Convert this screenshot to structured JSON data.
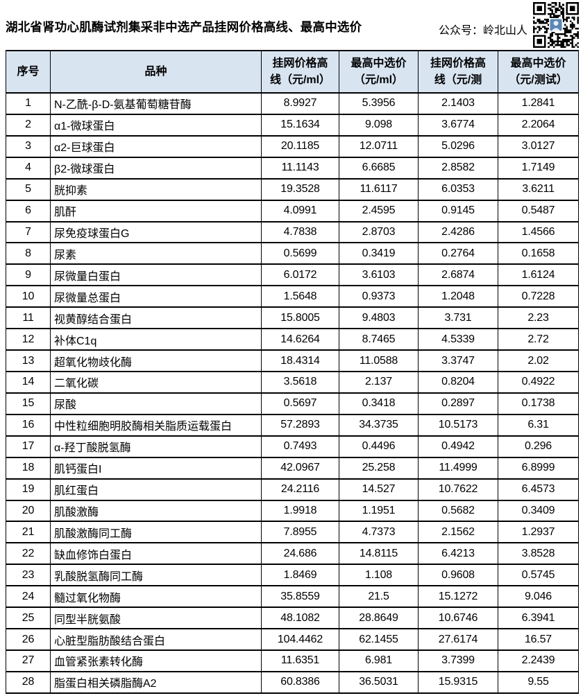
{
  "title": "湖北省肾功心肌酶试剂集采非中选产品挂网价格高线、最高中选价",
  "watermark": "公众号：岭北山人",
  "colors": {
    "header_bg": "#d9e4f1",
    "border": "#000000",
    "qr_avatar_blue": "#5b87b5"
  },
  "icons": {
    "qr_code": "qr-code"
  },
  "table": {
    "headers": [
      "序号",
      "品种",
      "挂网价格高\n线（元/ml）",
      "最高中选价\n（元/ml）",
      "挂网价格高\n线（元/测",
      "最高中选价\n（元/测试）"
    ],
    "rows": [
      [
        "1",
        "N-乙酰-β-D-氨基葡萄糖苷酶",
        "8.9927",
        "5.3956",
        "2.1403",
        "1.2841"
      ],
      [
        "2",
        "α1-微球蛋白",
        "15.1634",
        "9.098",
        "3.6774",
        "2.2064"
      ],
      [
        "3",
        "α2-巨球蛋白",
        "20.1185",
        "12.0711",
        "5.0296",
        "3.0127"
      ],
      [
        "4",
        "β2-微球蛋白",
        "11.1143",
        "6.6685",
        "2.8582",
        "1.7149"
      ],
      [
        "5",
        "胱抑素",
        "19.3528",
        "11.6117",
        "6.0353",
        "3.6211"
      ],
      [
        "6",
        "肌酐",
        "4.0991",
        "2.4595",
        "0.9145",
        "0.5487"
      ],
      [
        "7",
        "尿免疫球蛋白G",
        "4.7838",
        "2.8703",
        "2.4286",
        "1.4566"
      ],
      [
        "8",
        "尿素",
        "0.5699",
        "0.3419",
        "0.2764",
        "0.1658"
      ],
      [
        "9",
        "尿微量白蛋白",
        "6.0172",
        "3.6103",
        "2.6874",
        "1.6124"
      ],
      [
        "10",
        "尿微量总蛋白",
        "1.5648",
        "0.9373",
        "1.2048",
        "0.7228"
      ],
      [
        "11",
        "视黄醇结合蛋白",
        "15.8005",
        "9.4803",
        "3.731",
        "2.23"
      ],
      [
        "12",
        "补体C1q",
        "14.6264",
        "8.7465",
        "4.5339",
        "2.72"
      ],
      [
        "13",
        "超氧化物歧化酶",
        "18.4314",
        "11.0588",
        "3.3747",
        "2.02"
      ],
      [
        "14",
        "二氧化碳",
        "3.5618",
        "2.137",
        "0.8204",
        "0.4922"
      ],
      [
        "15",
        "尿酸",
        "0.5697",
        "0.3418",
        "0.2897",
        "0.1738"
      ],
      [
        "16",
        "中性粒细胞明胶酶相关脂质运载蛋白",
        "57.2893",
        "34.3735",
        "10.5173",
        "6.31"
      ],
      [
        "17",
        "α-羟丁酸脱氢酶",
        "0.7493",
        "0.4496",
        "0.4942",
        "0.296"
      ],
      [
        "18",
        "肌钙蛋白I",
        "42.0967",
        "25.258",
        "11.4999",
        "6.8999"
      ],
      [
        "19",
        "肌红蛋白",
        "24.2116",
        "14.527",
        "10.7622",
        "6.4573"
      ],
      [
        "20",
        "肌酸激酶",
        "1.9918",
        "1.1951",
        "0.5682",
        "0.3409"
      ],
      [
        "21",
        "肌酸激酶同工酶",
        "7.8955",
        "4.7373",
        "2.1562",
        "1.2937"
      ],
      [
        "22",
        "缺血修饰白蛋白",
        "24.686",
        "14.8115",
        "6.4213",
        "3.8528"
      ],
      [
        "23",
        "乳酸脱氢酶同工酶",
        "1.8469",
        "1.108",
        "0.9608",
        "0.5745"
      ],
      [
        "24",
        "髓过氧化物酶",
        "35.8559",
        "21.5",
        "15.1272",
        "9.046"
      ],
      [
        "25",
        "同型半胱氨酸",
        "48.1082",
        "28.8649",
        "10.6746",
        "6.3941"
      ],
      [
        "26",
        "心脏型脂肪酸结合蛋白",
        "104.4462",
        "62.1455",
        "27.6174",
        "16.57"
      ],
      [
        "27",
        "血管紧张素转化酶",
        "11.6351",
        "6.981",
        "3.7399",
        "2.2439"
      ],
      [
        "28",
        "脂蛋白相关磷脂酶A2",
        "60.8386",
        "36.5031",
        "15.9315",
        "9.55"
      ]
    ]
  }
}
